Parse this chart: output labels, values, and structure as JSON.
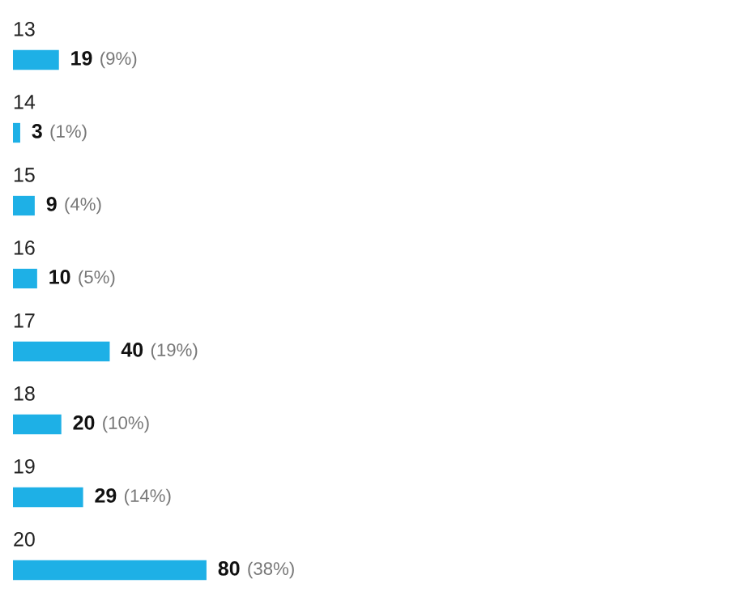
{
  "chart_data": {
    "type": "bar",
    "orientation": "horizontal",
    "categories": [
      "13",
      "14",
      "15",
      "16",
      "17",
      "18",
      "19",
      "20"
    ],
    "values": [
      19,
      3,
      9,
      10,
      40,
      20,
      29,
      80
    ],
    "color": "#1eb0e6",
    "data_labels": true,
    "annotations": [
      {
        "text": "(9%)",
        "x": 19,
        "y": "13"
      },
      {
        "text": "(1%)",
        "x": 3,
        "y": "14"
      },
      {
        "text": "(4%)",
        "x": 9,
        "y": "15"
      },
      {
        "text": "(5%)",
        "x": 10,
        "y": "16"
      },
      {
        "text": "(19%)",
        "x": 40,
        "y": "17"
      },
      {
        "text": "(10%)",
        "x": 20,
        "y": "18"
      },
      {
        "text": "(14%)",
        "x": 29,
        "y": "19"
      },
      {
        "text": "(38%)",
        "x": 80,
        "y": "20"
      }
    ]
  }
}
